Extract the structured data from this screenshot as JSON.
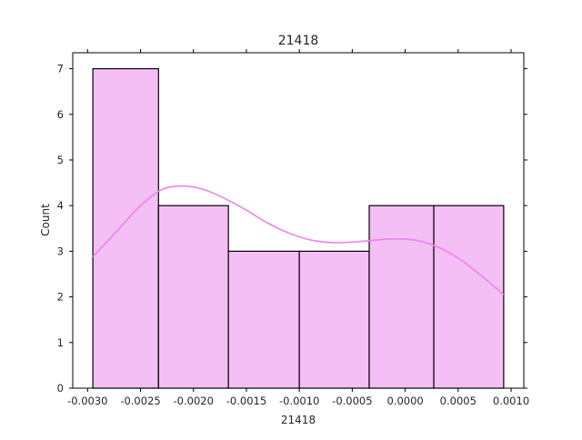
{
  "chart_data": {
    "type": "bar",
    "subtype": "histogram-with-kde",
    "title": "21418",
    "xlabel": "21418",
    "ylabel": "Count",
    "xlim": [
      -0.00314,
      0.00112
    ],
    "ylim": [
      0,
      7.35
    ],
    "x_ticks": [
      -0.003,
      -0.0025,
      -0.002,
      -0.0015,
      -0.001,
      -0.0005,
      0.0,
      0.0005,
      0.001
    ],
    "x_tick_labels": [
      "-0.0030",
      "-0.0025",
      "-0.0020",
      "-0.0015",
      "-0.0010",
      "-0.0005",
      "0.0000",
      "0.0005",
      "0.0010"
    ],
    "y_ticks": [
      0,
      1,
      2,
      3,
      4,
      5,
      6,
      7
    ],
    "y_tick_labels": [
      "0",
      "1",
      "2",
      "3",
      "4",
      "5",
      "6",
      "7"
    ],
    "bins": [
      {
        "x0": -0.00295,
        "x1": -0.00233,
        "count": 7
      },
      {
        "x0": -0.00233,
        "x1": -0.00167,
        "count": 4
      },
      {
        "x0": -0.00167,
        "x1": -0.001,
        "count": 3
      },
      {
        "x0": -0.001,
        "x1": -0.00034,
        "count": 3
      },
      {
        "x0": -0.00034,
        "x1": 0.00027,
        "count": 4
      },
      {
        "x0": 0.00027,
        "x1": 0.00093,
        "count": 4
      }
    ],
    "kde": {
      "x": [
        -0.00295,
        -0.0027,
        -0.0025,
        -0.0023,
        -0.0021,
        -0.0019,
        -0.0017,
        -0.0015,
        -0.0013,
        -0.0011,
        -0.0009,
        -0.0007,
        -0.0005,
        -0.0003,
        -0.0001,
        0.0001,
        0.0003,
        0.0005,
        0.0007,
        0.00093
      ],
      "y": [
        2.88,
        3.5,
        4.0,
        4.35,
        4.43,
        4.35,
        4.15,
        3.9,
        3.62,
        3.4,
        3.25,
        3.19,
        3.2,
        3.24,
        3.27,
        3.24,
        3.1,
        2.85,
        2.5,
        2.05
      ]
    },
    "colors": {
      "bar_fill": "#f4bff4",
      "bar_edge": "#000000",
      "kde_line": "#ee82ee"
    },
    "grid": false,
    "legend": "none"
  }
}
